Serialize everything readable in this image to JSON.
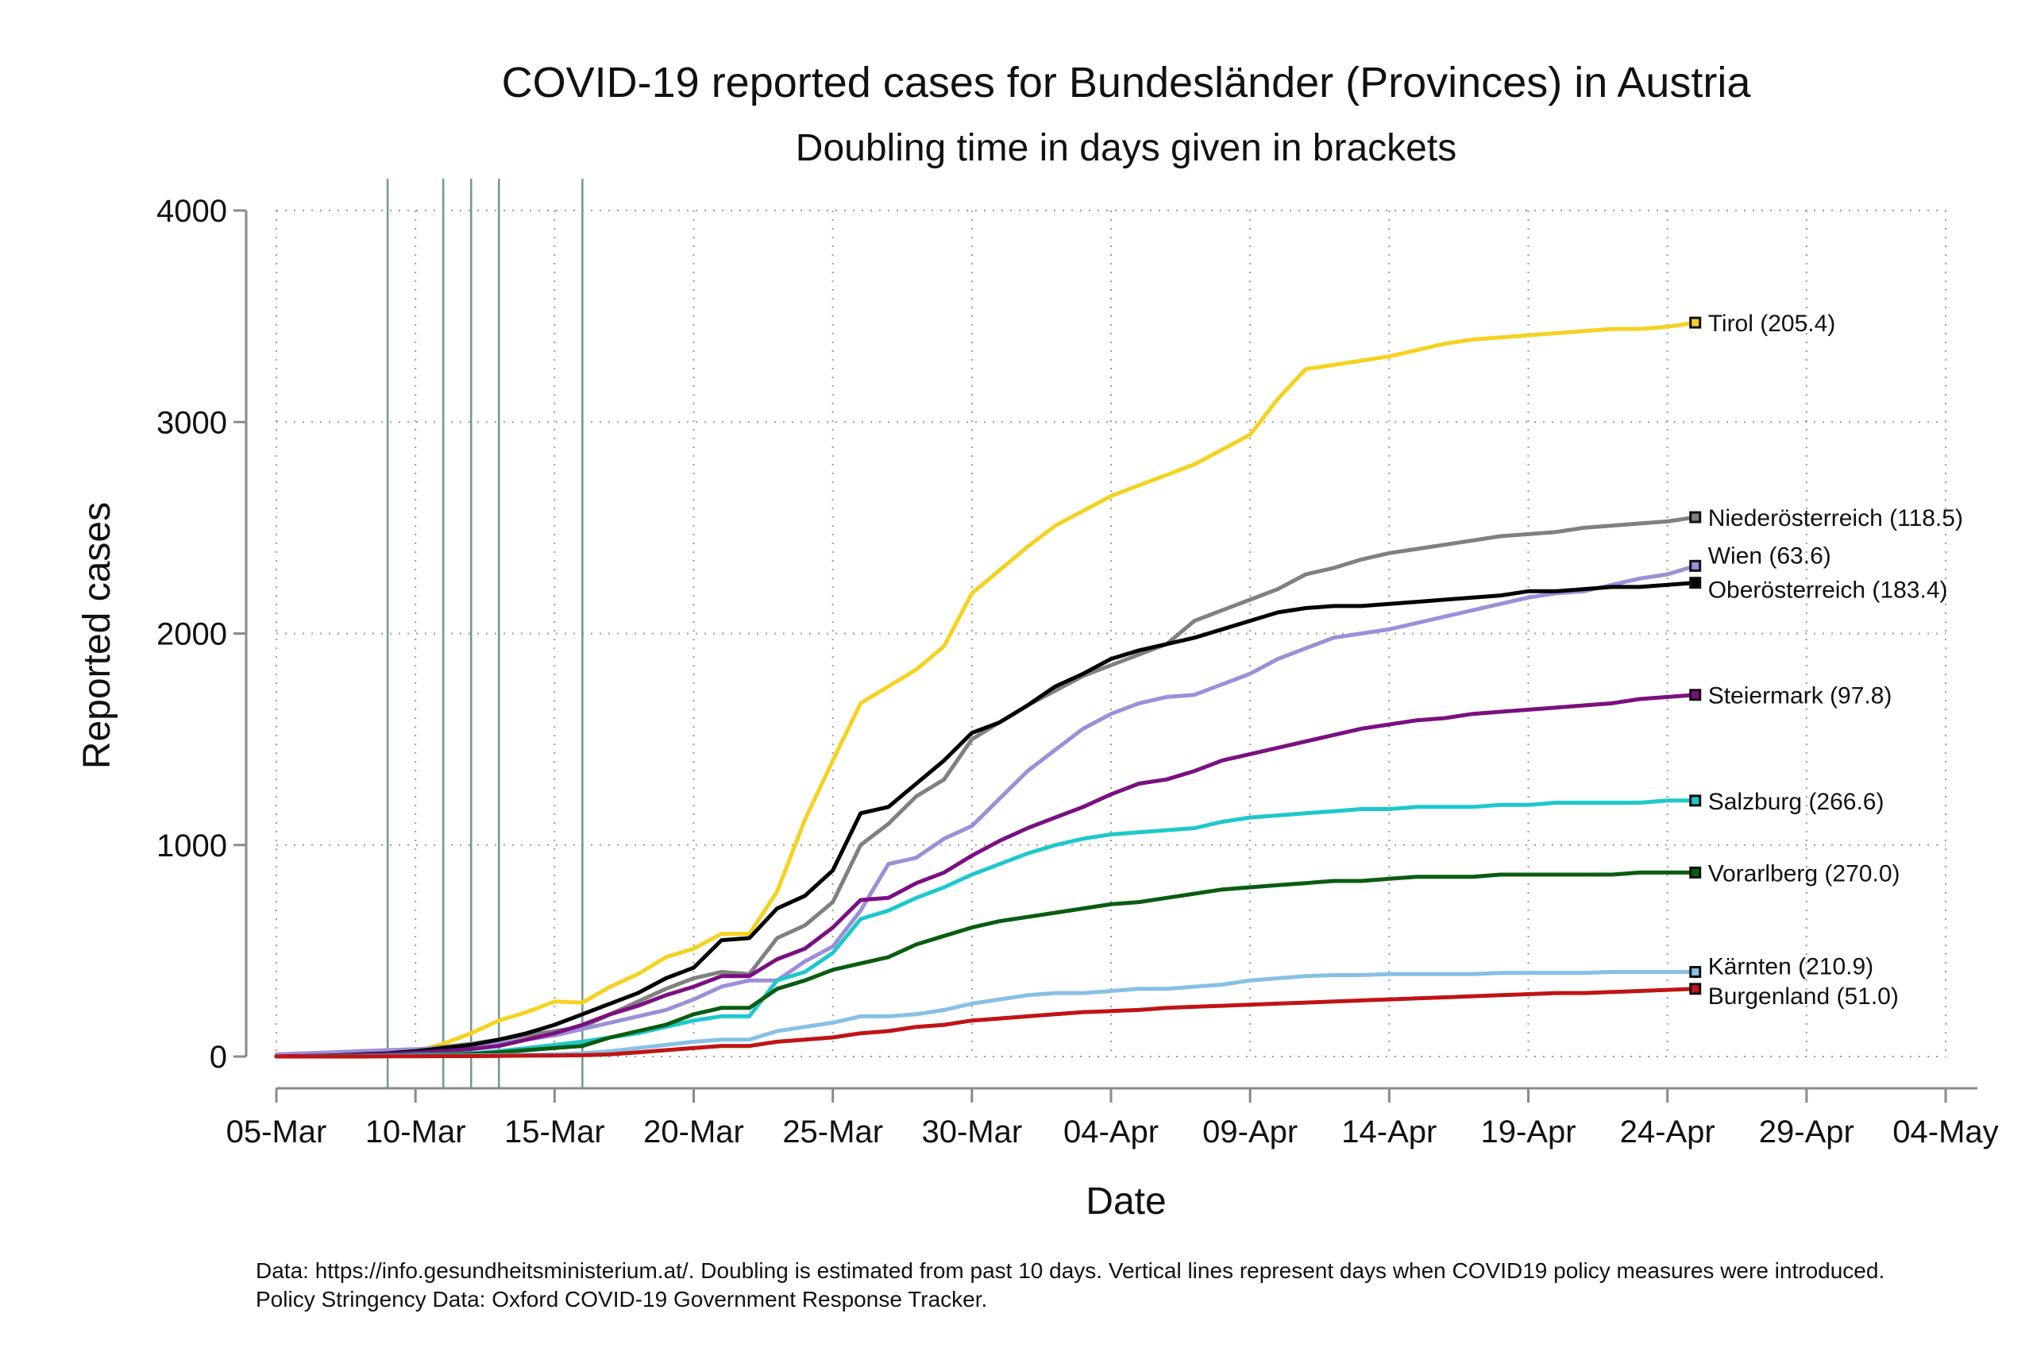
{
  "chart_data": {
    "type": "line",
    "title": "COVID-19 reported cases for Bundesländer (Provinces) in Austria",
    "subtitle": "Doubling time in days given in brackets",
    "xlabel": "Date",
    "ylabel": "Reported cases",
    "x_start": "2020-03-05",
    "x_ticks": [
      "05-Mar",
      "10-Mar",
      "15-Mar",
      "20-Mar",
      "25-Mar",
      "30-Mar",
      "04-Apr",
      "09-Apr",
      "14-Apr",
      "19-Apr",
      "24-Apr",
      "29-Apr",
      "04-May"
    ],
    "xlim": [
      "2020-03-05",
      "2020-05-04"
    ],
    "y_ticks": [
      0,
      1000,
      2000,
      3000,
      4000
    ],
    "ylim": [
      0,
      4000
    ],
    "grid": true,
    "policy_dates": [
      "2020-03-09",
      "2020-03-11",
      "2020-03-12",
      "2020-03-13",
      "2020-03-16"
    ],
    "x": [
      "2020-03-05",
      "2020-03-06",
      "2020-03-07",
      "2020-03-08",
      "2020-03-09",
      "2020-03-10",
      "2020-03-11",
      "2020-03-12",
      "2020-03-13",
      "2020-03-14",
      "2020-03-15",
      "2020-03-16",
      "2020-03-17",
      "2020-03-18",
      "2020-03-19",
      "2020-03-20",
      "2020-03-21",
      "2020-03-22",
      "2020-03-23",
      "2020-03-24",
      "2020-03-25",
      "2020-03-26",
      "2020-03-27",
      "2020-03-28",
      "2020-03-29",
      "2020-03-30",
      "2020-03-31",
      "2020-04-01",
      "2020-04-02",
      "2020-04-03",
      "2020-04-04",
      "2020-04-05",
      "2020-04-06",
      "2020-04-07",
      "2020-04-08",
      "2020-04-09",
      "2020-04-10",
      "2020-04-11",
      "2020-04-12",
      "2020-04-13",
      "2020-04-14",
      "2020-04-15",
      "2020-04-16",
      "2020-04-17",
      "2020-04-18",
      "2020-04-19",
      "2020-04-20",
      "2020-04-21",
      "2020-04-22",
      "2020-04-23",
      "2020-04-24",
      "2020-04-25"
    ],
    "series": [
      {
        "name": "Tirol",
        "label": "Tirol  (205.4)",
        "color": "#f5d21f",
        "values": [
          5,
          8,
          10,
          15,
          20,
          25,
          60,
          110,
          170,
          210,
          260,
          255,
          330,
          390,
          470,
          510,
          580,
          580,
          780,
          1120,
          1400,
          1670,
          1750,
          1830,
          1940,
          2190,
          2300,
          2410,
          2510,
          2580,
          2650,
          2700,
          2750,
          2800,
          2870,
          2940,
          3110,
          3250,
          3270,
          3290,
          3310,
          3340,
          3370,
          3390,
          3400,
          3410,
          3420,
          3430,
          3440,
          3440,
          3450,
          3470
        ]
      },
      {
        "name": "Niederösterreich",
        "label": "Niederösterreich  (118.5)",
        "color": "#808080",
        "values": [
          5,
          7,
          10,
          14,
          20,
          30,
          45,
          60,
          80,
          100,
          120,
          140,
          200,
          260,
          320,
          370,
          400,
          390,
          560,
          620,
          730,
          1000,
          1100,
          1230,
          1310,
          1500,
          1580,
          1660,
          1730,
          1800,
          1850,
          1900,
          1950,
          2060,
          2110,
          2160,
          2210,
          2280,
          2310,
          2350,
          2380,
          2400,
          2420,
          2440,
          2460,
          2470,
          2480,
          2500,
          2510,
          2520,
          2530,
          2550
        ]
      },
      {
        "name": "Wien",
        "label": "Wien  (63.6)",
        "color": "#9b8fd8",
        "values": [
          10,
          15,
          20,
          25,
          30,
          35,
          40,
          50,
          60,
          80,
          100,
          130,
          160,
          190,
          220,
          270,
          330,
          360,
          360,
          450,
          520,
          690,
          910,
          940,
          1030,
          1090,
          1220,
          1350,
          1450,
          1550,
          1620,
          1670,
          1700,
          1710,
          1760,
          1810,
          1880,
          1930,
          1980,
          2000,
          2020,
          2050,
          2080,
          2110,
          2140,
          2170,
          2190,
          2200,
          2230,
          2260,
          2280,
          2320
        ]
      },
      {
        "name": "Oberösterreich",
        "label": "Oberösterreich  (183.4)",
        "color": "#000000",
        "values": [
          0,
          2,
          5,
          10,
          15,
          25,
          40,
          55,
          80,
          110,
          150,
          200,
          250,
          300,
          370,
          420,
          550,
          560,
          700,
          760,
          880,
          1150,
          1180,
          1290,
          1400,
          1530,
          1580,
          1660,
          1750,
          1810,
          1880,
          1920,
          1950,
          1980,
          2020,
          2060,
          2100,
          2120,
          2130,
          2130,
          2140,
          2150,
          2160,
          2170,
          2180,
          2200,
          2200,
          2210,
          2220,
          2220,
          2230,
          2240
        ]
      },
      {
        "name": "Steiermark",
        "label": "Steiermark  (97.8)",
        "color": "#7a1080",
        "values": [
          0,
          2,
          5,
          8,
          12,
          18,
          25,
          35,
          50,
          80,
          110,
          150,
          200,
          240,
          290,
          330,
          380,
          380,
          460,
          510,
          610,
          740,
          750,
          820,
          870,
          950,
          1020,
          1080,
          1130,
          1180,
          1240,
          1290,
          1310,
          1350,
          1400,
          1430,
          1460,
          1490,
          1520,
          1550,
          1570,
          1590,
          1600,
          1620,
          1630,
          1640,
          1650,
          1660,
          1670,
          1690,
          1700,
          1710
        ]
      },
      {
        "name": "Salzburg",
        "label": "Salzburg  (266.6)",
        "color": "#1ec8cc",
        "values": [
          0,
          0,
          2,
          3,
          5,
          8,
          10,
          15,
          25,
          40,
          55,
          70,
          90,
          110,
          140,
          170,
          190,
          190,
          360,
          400,
          490,
          650,
          690,
          750,
          800,
          860,
          910,
          960,
          1000,
          1030,
          1050,
          1060,
          1070,
          1080,
          1110,
          1130,
          1140,
          1150,
          1160,
          1170,
          1170,
          1180,
          1180,
          1180,
          1190,
          1190,
          1200,
          1200,
          1200,
          1200,
          1210,
          1210
        ]
      },
      {
        "name": "Vorarlberg",
        "label": "Vorarlberg  (270.0)",
        "color": "#0a5c10",
        "values": [
          0,
          0,
          1,
          2,
          3,
          5,
          8,
          12,
          20,
          30,
          40,
          50,
          90,
          120,
          150,
          200,
          230,
          230,
          320,
          360,
          410,
          440,
          470,
          530,
          570,
          610,
          640,
          660,
          680,
          700,
          720,
          730,
          750,
          770,
          790,
          800,
          810,
          820,
          830,
          830,
          840,
          850,
          850,
          850,
          860,
          860,
          860,
          860,
          860,
          870,
          870,
          870
        ]
      },
      {
        "name": "Kärnten",
        "label": "Kärnten  (210.9)",
        "color": "#86c0e6",
        "values": [
          0,
          0,
          0,
          1,
          2,
          3,
          4,
          5,
          6,
          8,
          10,
          15,
          25,
          40,
          55,
          70,
          80,
          80,
          120,
          140,
          160,
          190,
          190,
          200,
          220,
          250,
          270,
          290,
          300,
          300,
          310,
          320,
          320,
          330,
          340,
          360,
          370,
          380,
          385,
          385,
          390,
          390,
          390,
          390,
          395,
          395,
          395,
          395,
          400,
          400,
          400,
          400
        ]
      },
      {
        "name": "Burgenland",
        "label": "Burgenland  (51.0)",
        "color": "#c01414",
        "values": [
          0,
          0,
          0,
          0,
          1,
          1,
          2,
          2,
          3,
          4,
          5,
          6,
          10,
          20,
          30,
          40,
          50,
          50,
          70,
          80,
          90,
          110,
          120,
          140,
          150,
          170,
          180,
          190,
          200,
          210,
          215,
          220,
          230,
          235,
          240,
          245,
          250,
          255,
          260,
          265,
          270,
          275,
          280,
          285,
          290,
          295,
          300,
          300,
          305,
          310,
          315,
          320
        ]
      }
    ]
  },
  "notes": {
    "line1": "Data: https://info.gesundheitsministerium.at/. Doubling is estimated from past 10 days. Vertical lines represent days when COVID19 policy measures were introduced.",
    "line2": "Policy Stringency Data: Oxford COVID-19 Government Response Tracker."
  }
}
